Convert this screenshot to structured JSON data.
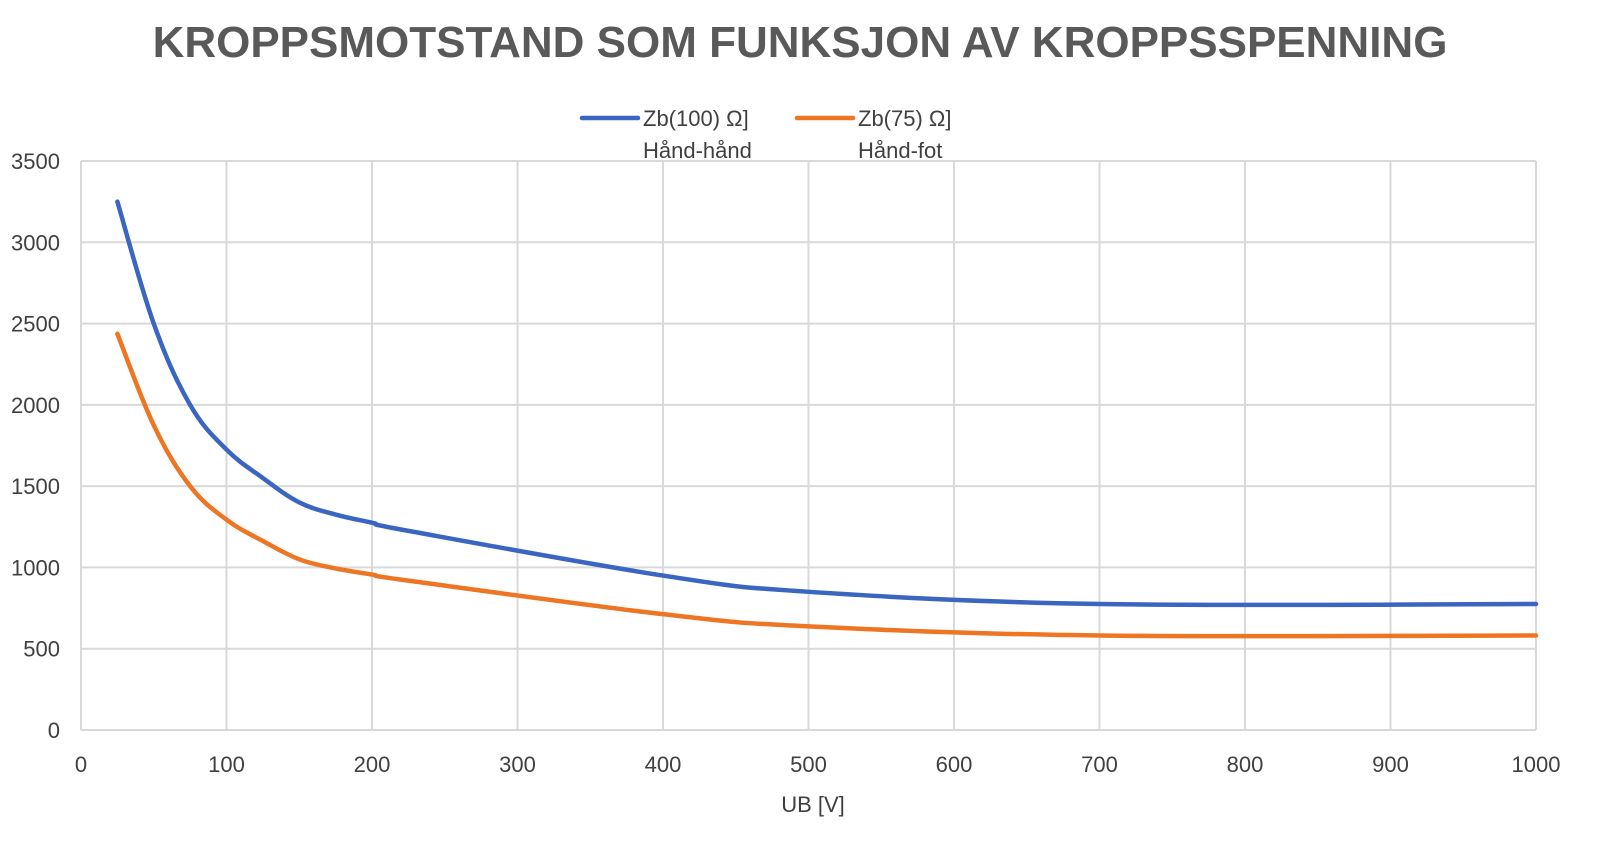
{
  "chart_data": {
    "type": "line",
    "title": "KROPPSMOTSTAND SOM FUNKSJON AV KROPPSSPENNING",
    "xlabel": "UB [V]",
    "ylabel": "",
    "xlim": [
      0,
      1000
    ],
    "ylim": [
      0,
      3500
    ],
    "x_ticks": [
      0,
      100,
      200,
      300,
      400,
      500,
      600,
      700,
      800,
      900,
      1000
    ],
    "y_ticks": [
      0,
      500,
      1000,
      1500,
      2000,
      2500,
      3000,
      3500
    ],
    "grid": true,
    "legend_position": "top",
    "x": [
      25,
      50,
      75,
      100,
      125,
      150,
      175,
      200,
      225,
      400,
      500,
      700,
      1000
    ],
    "series": [
      {
        "name": "Zb(100) Ω] Hånd-hånd",
        "label_line1": "Zb(100) Ω]",
        "label_line2": "Hånd-hånd",
        "color": "#3A65C0",
        "values": [
          3250,
          2500,
          2000,
          1725,
          1550,
          1400,
          1325,
          1275,
          1225,
          950,
          850,
          775,
          775
        ]
      },
      {
        "name": "Zb(75) Ω] Hånd-fot",
        "label_line1": "Zb(75) Ω]",
        "label_line2": "Hånd-fot",
        "color": "#EE7523",
        "values": [
          2437.5,
          1875,
          1500,
          1293.75,
          1162.5,
          1050,
          993.75,
          956.25,
          918.75,
          712.5,
          637.5,
          581.25,
          581.25
        ]
      }
    ]
  }
}
